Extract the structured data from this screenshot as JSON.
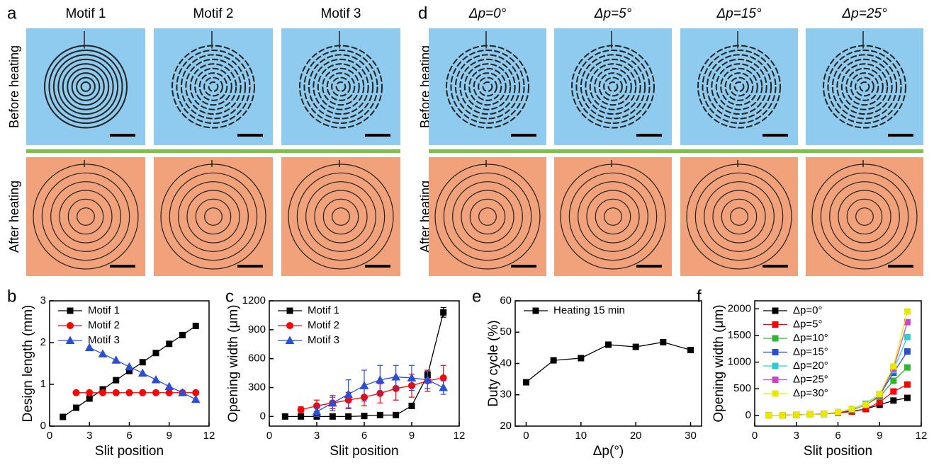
{
  "figure": {
    "a": {
      "label": "a",
      "columns": [
        "Motif 1",
        "Motif 2",
        "Motif 3"
      ],
      "rows": [
        "Before heating",
        "After heating"
      ]
    },
    "d": {
      "label": "d",
      "columns": [
        "Δp=0°",
        "Δp=5°",
        "Δp=15°",
        "Δp=25°"
      ],
      "rows": [
        "Before heating",
        "After heating"
      ]
    }
  },
  "chart_data": [
    {
      "type": "line",
      "panel_label": "b",
      "x_label": "Slit position",
      "y_label": "Design length (mm)",
      "xlim": [
        0,
        12
      ],
      "xticks": [
        0,
        3,
        6,
        9,
        12
      ],
      "ylim": [
        0,
        3
      ],
      "yticks": [
        0,
        1,
        2,
        3
      ],
      "legend": "top-left",
      "series": [
        {
          "name": "Motif 1",
          "color": "#000000",
          "marker": "square",
          "x": [
            1,
            2,
            3,
            4,
            5,
            6,
            7,
            8,
            9,
            10,
            11
          ],
          "values": [
            0.22,
            0.44,
            0.66,
            0.88,
            1.1,
            1.32,
            1.53,
            1.75,
            1.97,
            2.18,
            2.4
          ]
        },
        {
          "name": "Motif 2",
          "color": "#ff0000",
          "marker": "circle",
          "x": [
            2,
            3,
            4,
            5,
            6,
            7,
            8,
            9,
            10,
            11
          ],
          "values": [
            0.8,
            0.8,
            0.8,
            0.8,
            0.8,
            0.8,
            0.8,
            0.8,
            0.8,
            0.8
          ]
        },
        {
          "name": "Motif 3",
          "color": "#2a4fd6",
          "marker": "triangle",
          "x": [
            3,
            4,
            5,
            6,
            7,
            8,
            9,
            10,
            11
          ],
          "values": [
            1.88,
            1.73,
            1.58,
            1.42,
            1.27,
            1.11,
            0.95,
            0.8,
            0.64
          ]
        }
      ]
    },
    {
      "type": "line",
      "panel_label": "c",
      "x_label": "Slit position",
      "y_label": "Opening width (μm)",
      "xlim": [
        0,
        12
      ],
      "xticks": [
        0,
        3,
        6,
        9,
        12
      ],
      "ylim": [
        -100,
        1200
      ],
      "yticks": [
        0,
        300,
        600,
        900,
        1200
      ],
      "legend": "top-left",
      "series": [
        {
          "name": "Motif 1",
          "color": "#000000",
          "marker": "square",
          "x": [
            1,
            2,
            3,
            4,
            5,
            6,
            7,
            8,
            9,
            10,
            11
          ],
          "values": [
            0,
            0,
            0,
            0,
            0,
            5,
            15,
            15,
            110,
            430,
            1080
          ],
          "errors": [
            2,
            2,
            2,
            2,
            2,
            3,
            5,
            5,
            15,
            30,
            50
          ]
        },
        {
          "name": "Motif 2",
          "color": "#ff0000",
          "marker": "circle",
          "x": [
            2,
            3,
            4,
            5,
            6,
            7,
            8,
            9,
            10,
            11
          ],
          "values": [
            70,
            110,
            140,
            170,
            200,
            240,
            290,
            320,
            370,
            400
          ],
          "errors": [
            30,
            60,
            60,
            80,
            90,
            100,
            120,
            120,
            110,
            130
          ]
        },
        {
          "name": "Motif 3",
          "color": "#2a4fd6",
          "marker": "triangle",
          "x": [
            3,
            4,
            5,
            6,
            7,
            8,
            9,
            10,
            11
          ],
          "values": [
            50,
            140,
            230,
            320,
            380,
            410,
            400,
            380,
            300
          ],
          "errors": [
            50,
            80,
            150,
            160,
            150,
            120,
            130,
            90,
            70
          ]
        }
      ]
    },
    {
      "type": "line",
      "panel_label": "e",
      "x_label": "Δp(°)",
      "y_label": "Duty cycle (%)",
      "xlim": [
        -2,
        32
      ],
      "xticks": [
        0,
        10,
        20,
        30
      ],
      "ylim": [
        20,
        60
      ],
      "yticks": [
        20,
        30,
        40,
        50,
        60
      ],
      "legend": "top-left",
      "series": [
        {
          "name": "Heating 15 min",
          "color": "#000000",
          "marker": "square",
          "x": [
            0,
            5,
            10,
            15,
            20,
            25,
            30
          ],
          "values": [
            34,
            41,
            41.7,
            46,
            45.3,
            46.8,
            44.3
          ]
        }
      ]
    },
    {
      "type": "line",
      "panel_label": "f",
      "x_label": "Slit position",
      "y_label": "Opening width (μm)",
      "xlim": [
        0,
        12
      ],
      "xticks": [
        0,
        3,
        6,
        9,
        12
      ],
      "ylim": [
        -200,
        2150
      ],
      "yticks": [
        0,
        500,
        1000,
        1500,
        2000
      ],
      "legend": "top-left",
      "series": [
        {
          "name": "Δp=0°",
          "color": "#000000",
          "marker": "square",
          "x": [
            1,
            2,
            3,
            4,
            5,
            6,
            7,
            8,
            9,
            10,
            11
          ],
          "values": [
            0,
            5,
            10,
            20,
            30,
            50,
            80,
            120,
            200,
            280,
            330
          ]
        },
        {
          "name": "Δp=5°",
          "color": "#ff0000",
          "marker": "square",
          "x": [
            1,
            2,
            3,
            4,
            5,
            6,
            7,
            8,
            9,
            10,
            11
          ],
          "values": [
            0,
            5,
            10,
            20,
            30,
            50,
            70,
            120,
            250,
            450,
            580
          ]
        },
        {
          "name": "Δp=10°",
          "color": "#33b533",
          "marker": "square",
          "x": [
            1,
            2,
            3,
            4,
            5,
            6,
            7,
            8,
            9,
            10,
            11
          ],
          "values": [
            0,
            5,
            10,
            20,
            30,
            60,
            100,
            200,
            350,
            650,
            900
          ]
        },
        {
          "name": "Δp=15°",
          "color": "#2a4fd6",
          "marker": "square",
          "x": [
            1,
            2,
            3,
            4,
            5,
            6,
            7,
            8,
            9,
            10,
            11
          ],
          "values": [
            0,
            5,
            10,
            20,
            30,
            60,
            110,
            200,
            380,
            800,
            1200
          ]
        },
        {
          "name": "Δp=20°",
          "color": "#33cccc",
          "marker": "square",
          "x": [
            1,
            2,
            3,
            4,
            5,
            6,
            7,
            8,
            9,
            10,
            11
          ],
          "values": [
            0,
            5,
            10,
            20,
            30,
            60,
            120,
            220,
            400,
            850,
            1470
          ]
        },
        {
          "name": "Δp=25°",
          "color": "#cc44cc",
          "marker": "square",
          "x": [
            1,
            2,
            3,
            4,
            5,
            6,
            7,
            8,
            9,
            10,
            11
          ],
          "values": [
            0,
            5,
            10,
            20,
            30,
            60,
            120,
            200,
            380,
            880,
            1750
          ]
        },
        {
          "name": "Δp=30°",
          "color": "#e8e800",
          "marker": "square",
          "x": [
            1,
            2,
            3,
            4,
            5,
            6,
            7,
            8,
            9,
            10,
            11
          ],
          "values": [
            0,
            5,
            10,
            20,
            30,
            60,
            120,
            200,
            400,
            920,
            1950
          ]
        }
      ]
    }
  ]
}
